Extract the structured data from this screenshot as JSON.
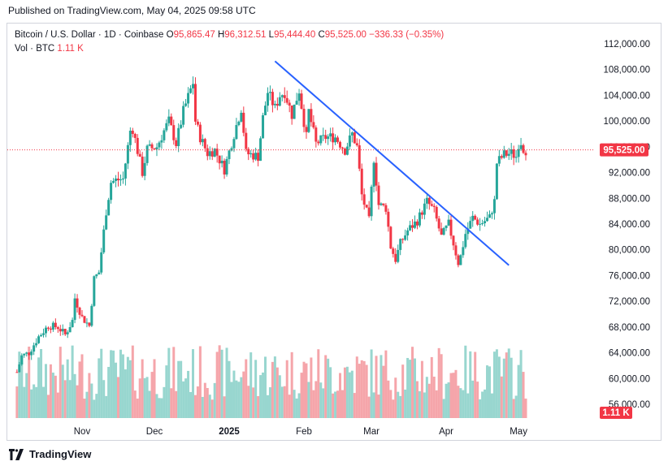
{
  "published": "Published on TradingView.com, May 04, 2025 09:58 UTC",
  "legend": {
    "symbol": "Bitcoin / U.S. Dollar · 1D · Coinbase",
    "open_label": "O",
    "open_value": "95,865.47",
    "high_label": "H",
    "high_value": "96,312.51",
    "low_label": "L",
    "low_value": "95,444.40",
    "close_label": "C",
    "close_value": "95,525.00",
    "change": "−336.33 (−0.35%)",
    "vol_label": "Vol · BTC",
    "vol_value": "1.11 K"
  },
  "price_badge": "95,525.00",
  "volume_badge": "1.11 K",
  "footer": {
    "brand": "TradingView"
  },
  "colors": {
    "up": "#26a69a",
    "down": "#f23645",
    "trendline": "#2962ff",
    "vol_up": "#98d6cf",
    "vol_down": "#f5a5aa"
  },
  "chart_data": {
    "type": "candlestick",
    "symbol": "Bitcoin / U.S. Dollar",
    "interval": "1D",
    "exchange": "Coinbase",
    "y_ticks": [
      "112,000.00",
      "108,000.00",
      "104,000.00",
      "100,000.00",
      "96,000.00",
      "92,000.00",
      "88,000.00",
      "84,000.00",
      "80,000.00",
      "76,000.00",
      "72,000.00",
      "68,000.00",
      "64,000.00",
      "60,000.00",
      "56,000.00"
    ],
    "y_tick_values": [
      112000,
      108000,
      104000,
      100000,
      96000,
      92000,
      88000,
      84000,
      80000,
      76000,
      72000,
      68000,
      64000,
      60000,
      56000
    ],
    "x_ticks": [
      "Nov",
      "Dec",
      "2025",
      "Feb",
      "Mar",
      "Apr",
      "May"
    ],
    "x_tick_dates": [
      "2024-11-01",
      "2024-12-01",
      "2025-01-01",
      "2025-02-01",
      "2025-03-01",
      "2025-04-01",
      "2025-05-01"
    ],
    "last_price": 95525,
    "trendline": {
      "start": [
        "2025-01-20",
        109300
      ],
      "end": [
        "2025-04-27",
        77600
      ]
    },
    "price_path": [
      [
        "2024-10-05",
        61000
      ],
      [
        "2024-10-07",
        63500
      ],
      [
        "2024-10-10",
        64000
      ],
      [
        "2024-10-14",
        66500
      ],
      [
        "2024-10-18",
        68200
      ],
      [
        "2024-10-22",
        68000
      ],
      [
        "2024-10-25",
        66800
      ],
      [
        "2024-10-28",
        69000
      ],
      [
        "2024-10-29",
        72500
      ],
      [
        "2024-11-01",
        69500
      ],
      [
        "2024-11-04",
        68200
      ],
      [
        "2024-11-06",
        75500
      ],
      [
        "2024-11-08",
        76500
      ],
      [
        "2024-11-11",
        86000
      ],
      [
        "2024-11-13",
        90500
      ],
      [
        "2024-11-15",
        90800
      ],
      [
        "2024-11-18",
        91000
      ],
      [
        "2024-11-21",
        98500
      ],
      [
        "2024-11-22",
        98800
      ],
      [
        "2024-11-26",
        92000
      ],
      [
        "2024-11-28",
        95600
      ],
      [
        "2024-12-02",
        96000
      ],
      [
        "2024-12-05",
        98500
      ],
      [
        "2024-12-07",
        100000
      ],
      [
        "2024-12-10",
        96500
      ],
      [
        "2024-12-13",
        101500
      ],
      [
        "2024-12-17",
        106000
      ],
      [
        "2024-12-18",
        100000
      ],
      [
        "2024-12-20",
        97500
      ],
      [
        "2024-12-23",
        95000
      ],
      [
        "2024-12-26",
        95500
      ],
      [
        "2024-12-30",
        92500
      ],
      [
        "2025-01-03",
        98000
      ],
      [
        "2025-01-06",
        102000
      ],
      [
        "2025-01-08",
        95000
      ],
      [
        "2025-01-13",
        94500
      ],
      [
        "2025-01-15",
        100500
      ],
      [
        "2025-01-17",
        104500
      ],
      [
        "2025-01-20",
        102000
      ],
      [
        "2025-01-22",
        104000
      ],
      [
        "2025-01-24",
        104500
      ],
      [
        "2025-01-27",
        101000
      ],
      [
        "2025-01-30",
        104800
      ],
      [
        "2025-02-02",
        97500
      ],
      [
        "2025-02-03",
        101500
      ],
      [
        "2025-02-06",
        96500
      ],
      [
        "2025-02-10",
        97500
      ],
      [
        "2025-02-14",
        97500
      ],
      [
        "2025-02-18",
        95500
      ],
      [
        "2025-02-21",
        98000
      ],
      [
        "2025-02-23",
        96000
      ],
      [
        "2025-02-25",
        88500
      ],
      [
        "2025-02-28",
        84500
      ],
      [
        "2025-03-02",
        94200
      ],
      [
        "2025-03-04",
        87000
      ],
      [
        "2025-03-07",
        86500
      ],
      [
        "2025-03-09",
        80500
      ],
      [
        "2025-03-11",
        78500
      ],
      [
        "2025-03-13",
        81000
      ],
      [
        "2025-03-16",
        83000
      ],
      [
        "2025-03-20",
        84500
      ],
      [
        "2025-03-24",
        87500
      ],
      [
        "2025-03-27",
        86000
      ],
      [
        "2025-03-30",
        82000
      ],
      [
        "2025-04-02",
        84000
      ],
      [
        "2025-04-06",
        78000
      ],
      [
        "2025-04-07",
        79000
      ],
      [
        "2025-04-09",
        82500
      ],
      [
        "2025-04-12",
        85000
      ],
      [
        "2025-04-15",
        84000
      ],
      [
        "2025-04-19",
        85000
      ],
      [
        "2025-04-21",
        87500
      ],
      [
        "2025-04-22",
        93500
      ],
      [
        "2025-04-25",
        94800
      ],
      [
        "2025-04-28",
        95000
      ],
      [
        "2025-04-30",
        94500
      ],
      [
        "2025-05-01",
        96500
      ],
      [
        "2025-05-02",
        96800
      ],
      [
        "2025-05-03",
        95800
      ],
      [
        "2025-05-04",
        95525
      ]
    ]
  }
}
